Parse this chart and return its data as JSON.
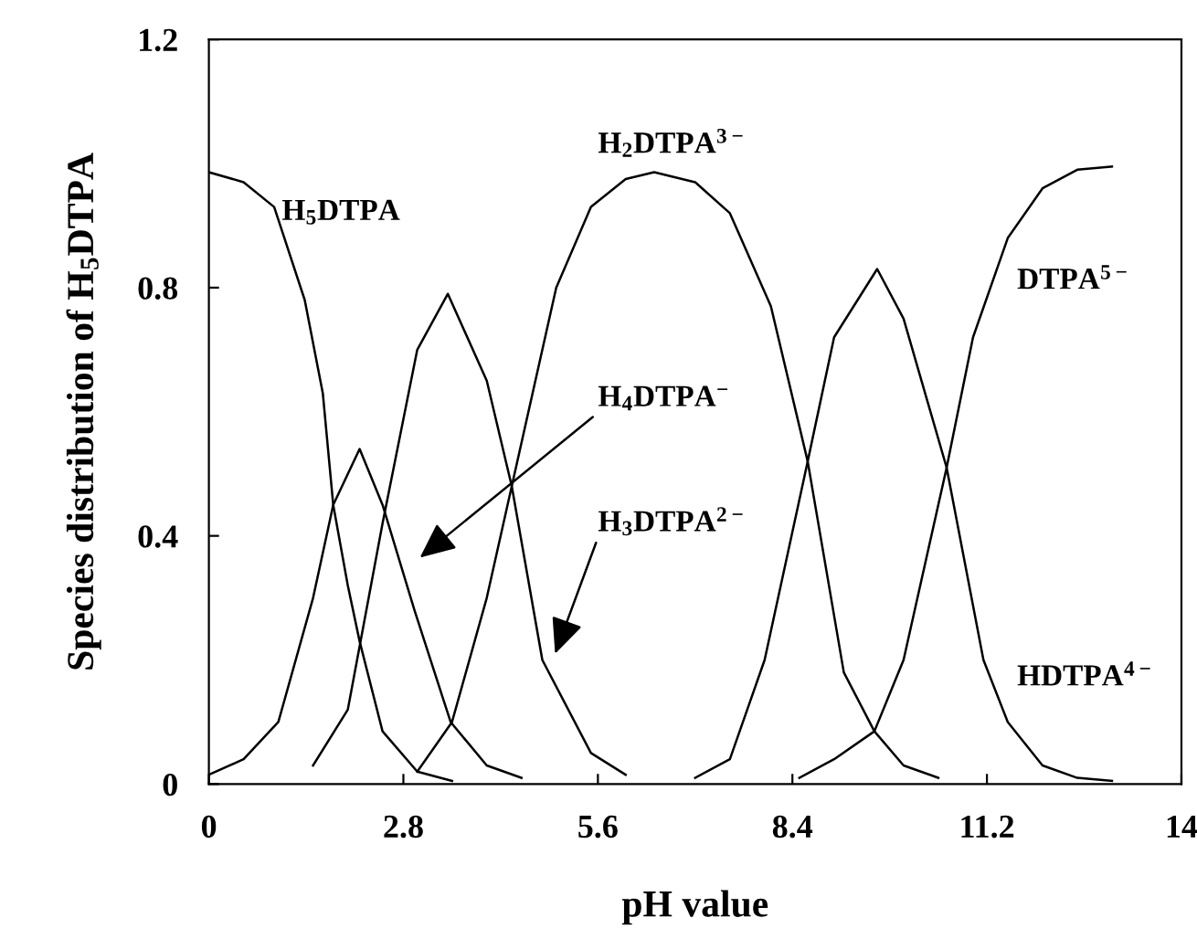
{
  "chart_data": {
    "type": "line",
    "xlabel": "pH value",
    "ylabel": "Species distribution of H$_{5}$DTPA",
    "xlim": [
      0,
      14
    ],
    "xticks": [
      0,
      2.8,
      5.6,
      8.4,
      11.2,
      14
    ],
    "ylim": [
      0,
      1.2
    ],
    "yticks": [
      0,
      0.4,
      0.8,
      1.2
    ],
    "grid": false,
    "marker": "none",
    "line_style": "solid",
    "series": [
      {
        "color": "#000000",
        "x": [
          0,
          0.5,
          0.94,
          1.38,
          1.64,
          1.79,
          2.0,
          2.17,
          2.5,
          3.0,
          3.5
        ],
        "values": [
          0.986,
          0.97,
          0.93,
          0.78,
          0.63,
          0.45,
          0.32,
          0.23,
          0.085,
          0.02,
          0.005
        ]
      },
      {
        "color": "#000000",
        "x": [
          0,
          0.5,
          1.0,
          1.5,
          1.79,
          2.17,
          2.5,
          2.96,
          3.48,
          4.0,
          4.5
        ],
        "values": [
          0.015,
          0.04,
          0.1,
          0.3,
          0.45,
          0.54,
          0.45,
          0.28,
          0.1,
          0.03,
          0.01
        ]
      },
      {
        "color": "#000000",
        "x": [
          1.5,
          2.0,
          2.5,
          3.0,
          3.44,
          4.0,
          4.36,
          4.8,
          5.5,
          6.0
        ],
        "values": [
          0.03,
          0.12,
          0.42,
          0.7,
          0.79,
          0.65,
          0.48,
          0.2,
          0.05,
          0.015
        ]
      },
      {
        "color": "#000000",
        "x": [
          3.0,
          3.5,
          4.0,
          4.36,
          5.0,
          5.5,
          6.0,
          6.41,
          7.0,
          7.5,
          8.09,
          8.62,
          9.14,
          9.58,
          10.0,
          10.5
        ],
        "values": [
          0.02,
          0.1,
          0.3,
          0.48,
          0.8,
          0.93,
          0.975,
          0.986,
          0.97,
          0.92,
          0.77,
          0.52,
          0.18,
          0.085,
          0.03,
          0.01
        ]
      },
      {
        "color": "#000000",
        "x": [
          7.0,
          7.5,
          8.0,
          8.62,
          9.0,
          9.62,
          10.0,
          10.62,
          11.15,
          11.5,
          12.0,
          12.5,
          13.0
        ],
        "values": [
          0.01,
          0.04,
          0.2,
          0.52,
          0.72,
          0.83,
          0.75,
          0.51,
          0.2,
          0.1,
          0.03,
          0.01,
          0.005
        ]
      },
      {
        "color": "#000000",
        "x": [
          8.5,
          9.0,
          9.58,
          10.0,
          10.62,
          11.0,
          11.5,
          12.0,
          12.5,
          13.0
        ],
        "values": [
          0.01,
          0.04,
          0.085,
          0.2,
          0.51,
          0.72,
          0.88,
          0.96,
          0.99,
          0.995
        ]
      }
    ],
    "annotations": [
      "H$_{5}$DTPA",
      "H$_{2}$DTPA$^{3−}$",
      "H$_{4}$DTPA$^{−}$",
      "H$_{3}$DTPA$^{2−}$",
      "DTPA$^{5−}$",
      "HDTPA$^{4−}$"
    ]
  }
}
